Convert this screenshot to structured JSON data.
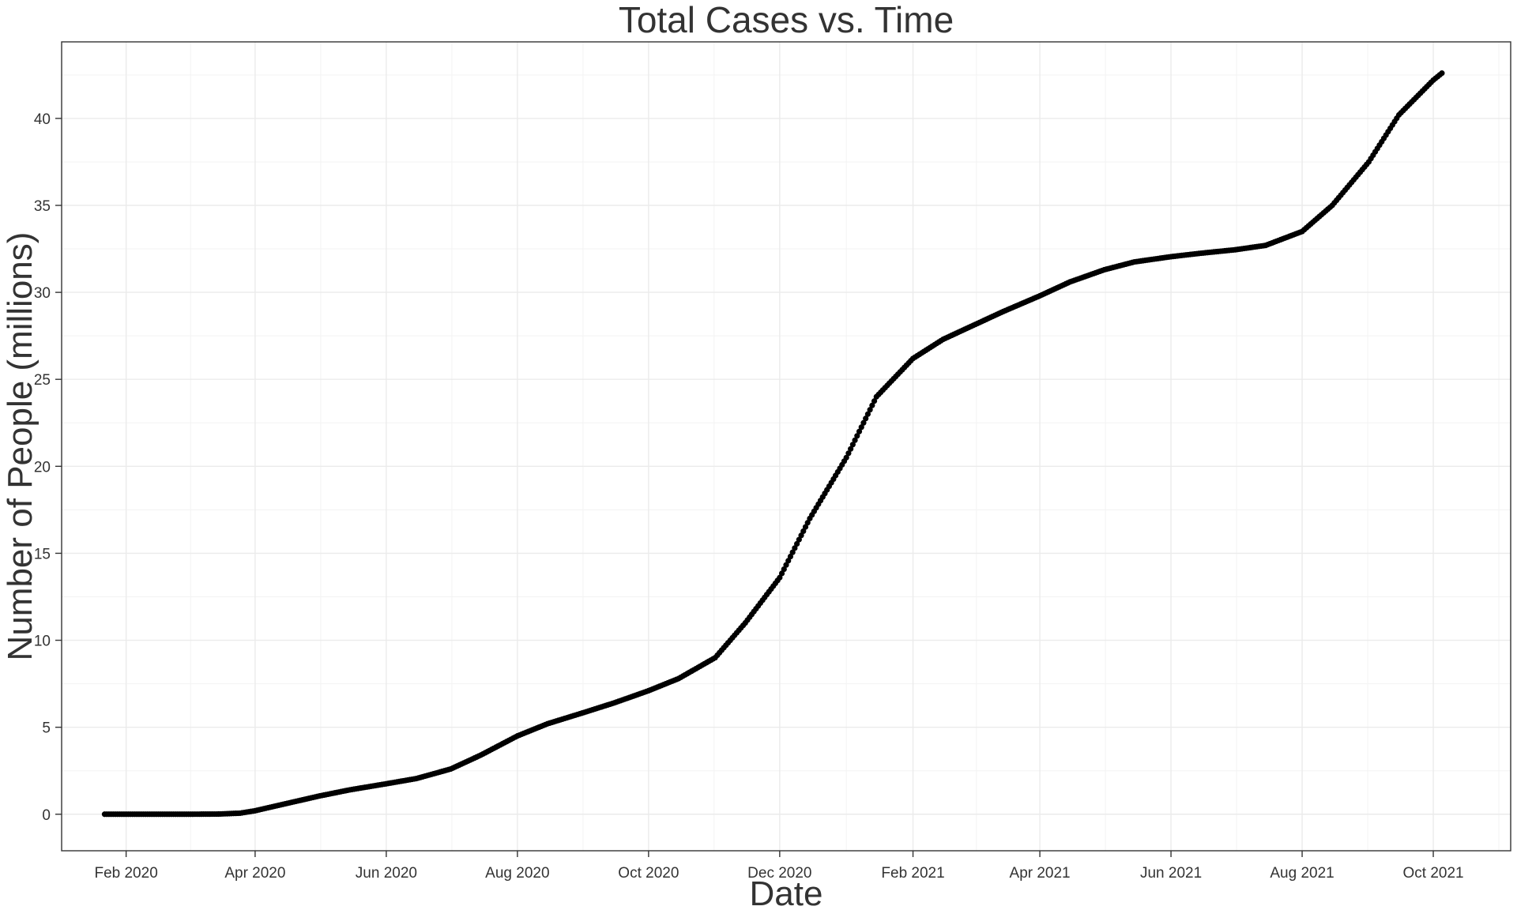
{
  "chart_data": {
    "type": "scatter",
    "title": "Total Cases vs. Time",
    "xlabel": "Date",
    "ylabel": "Number of People (millions)",
    "x_tick_labels": [
      "Feb 2020",
      "Apr 2020",
      "Jun 2020",
      "Aug 2020",
      "Oct 2020",
      "Dec 2020",
      "Feb 2021",
      "Apr 2021",
      "Jun 2021",
      "Aug 2021",
      "Oct 2021"
    ],
    "x_ticks": [
      "2020-02-01",
      "2020-04-01",
      "2020-06-01",
      "2020-08-01",
      "2020-10-01",
      "2020-12-01",
      "2021-02-01",
      "2021-04-01",
      "2021-06-01",
      "2021-08-01",
      "2021-10-01"
    ],
    "y_ticks": [
      0,
      5,
      10,
      15,
      20,
      25,
      30,
      35,
      40
    ],
    "xlim": [
      "2020-01-02",
      "2021-11-06"
    ],
    "ylim": [
      -2.1,
      44.4
    ],
    "grid": true,
    "series": [
      {
        "points": [
          [
            "2020-01-22",
            0.0
          ],
          [
            "2020-02-15",
            0.0
          ],
          [
            "2020-03-01",
            0.0
          ],
          [
            "2020-03-15",
            0.01
          ],
          [
            "2020-03-25",
            0.06
          ],
          [
            "2020-04-01",
            0.2
          ],
          [
            "2020-04-15",
            0.6
          ],
          [
            "2020-05-01",
            1.05
          ],
          [
            "2020-05-15",
            1.4
          ],
          [
            "2020-06-01",
            1.75
          ],
          [
            "2020-06-15",
            2.05
          ],
          [
            "2020-07-01",
            2.6
          ],
          [
            "2020-07-15",
            3.4
          ],
          [
            "2020-08-01",
            4.5
          ],
          [
            "2020-08-15",
            5.2
          ],
          [
            "2020-09-01",
            5.85
          ],
          [
            "2020-09-15",
            6.4
          ],
          [
            "2020-10-01",
            7.1
          ],
          [
            "2020-10-15",
            7.8
          ],
          [
            "2020-11-01",
            9.0
          ],
          [
            "2020-11-15",
            11.0
          ],
          [
            "2020-12-01",
            13.6
          ],
          [
            "2020-12-15",
            17.0
          ],
          [
            "2021-01-01",
            20.5
          ],
          [
            "2021-01-15",
            24.0
          ],
          [
            "2021-02-01",
            26.2
          ],
          [
            "2021-02-15",
            27.3
          ],
          [
            "2021-03-01",
            28.1
          ],
          [
            "2021-03-15",
            28.9
          ],
          [
            "2021-04-01",
            29.8
          ],
          [
            "2021-04-15",
            30.6
          ],
          [
            "2021-05-01",
            31.3
          ],
          [
            "2021-05-15",
            31.75
          ],
          [
            "2021-06-01",
            32.05
          ],
          [
            "2021-06-15",
            32.25
          ],
          [
            "2021-07-01",
            32.45
          ],
          [
            "2021-07-15",
            32.7
          ],
          [
            "2021-08-01",
            33.5
          ],
          [
            "2021-08-15",
            35.0
          ],
          [
            "2021-09-01",
            37.5
          ],
          [
            "2021-09-15",
            40.2
          ],
          [
            "2021-10-01",
            42.2
          ],
          [
            "2021-10-05",
            42.6
          ]
        ]
      }
    ]
  }
}
